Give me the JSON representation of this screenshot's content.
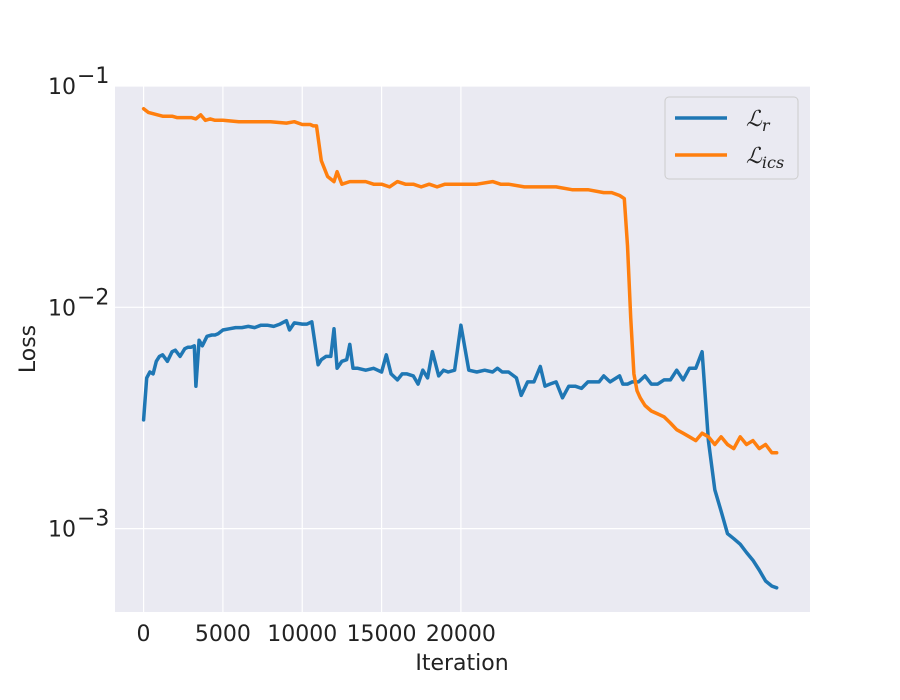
{
  "chart_data": {
    "type": "line",
    "xlabel": "Iteration",
    "ylabel": "Loss",
    "yscale": "log",
    "grid": true,
    "legend_position": "top-right",
    "xlim": [
      -1800,
      42000
    ],
    "ylim": [
      0.00042,
      0.1
    ],
    "x_ticks": [
      0,
      5000,
      10000,
      15000,
      20000
    ],
    "x_tick_labels": [
      "0",
      "5000",
      "10000",
      "15000",
      "20000"
    ],
    "y_ticks": [
      0.001,
      0.01,
      0.1
    ],
    "y_tick_labels": [
      {
        "base": "10",
        "exp": "−3"
      },
      {
        "base": "10",
        "exp": "−2"
      },
      {
        "base": "10",
        "exp": "−1"
      }
    ],
    "series": [
      {
        "name": "ℒr",
        "legend_base": "ℒ",
        "legend_sub": "r",
        "color": "#1f77b4",
        "x": [
          0,
          200,
          400,
          600,
          800,
          1000,
          1200,
          1500,
          1800,
          2000,
          2300,
          2600,
          2800,
          3000,
          3200,
          3300,
          3500,
          3700,
          4000,
          4300,
          4500,
          4700,
          5000,
          5400,
          5800,
          6200,
          6600,
          7000,
          7400,
          7800,
          8200,
          8600,
          9000,
          9200,
          9500,
          10000,
          10300,
          10600,
          11000,
          11200,
          11500,
          11800,
          12000,
          12200,
          12500,
          12800,
          13000,
          13200,
          13500,
          14000,
          14500,
          15000,
          15300,
          15600,
          16000,
          16300,
          16600,
          17000,
          17300,
          17600,
          17900,
          18200,
          18600,
          18900,
          19200,
          19600,
          20000,
          20500,
          21000,
          21500,
          22000,
          22300,
          22600,
          23000,
          23500,
          23800,
          24200,
          24600,
          25000,
          25300,
          25600,
          26000,
          26400,
          26800,
          27200,
          27600,
          28000,
          28300,
          28700,
          29000,
          29400,
          29800,
          30000,
          30200,
          30500,
          30800,
          31200,
          31600,
          32000,
          32400,
          32800,
          33200,
          33600,
          34000,
          34400,
          34800,
          35200,
          35600,
          36000,
          36400,
          36800,
          37200,
          37600,
          38000,
          38400,
          38800,
          39200,
          39600,
          39900
        ],
        "y": [
          0.0031,
          0.0048,
          0.0051,
          0.005,
          0.0057,
          0.006,
          0.0061,
          0.0057,
          0.0063,
          0.0064,
          0.006,
          0.0065,
          0.0066,
          0.0066,
          0.0067,
          0.0044,
          0.0071,
          0.0067,
          0.0074,
          0.0075,
          0.0075,
          0.0076,
          0.0079,
          0.008,
          0.0081,
          0.0081,
          0.0082,
          0.0081,
          0.0083,
          0.0083,
          0.0082,
          0.0084,
          0.0087,
          0.0079,
          0.0085,
          0.0084,
          0.0084,
          0.0086,
          0.0055,
          0.0058,
          0.006,
          0.006,
          0.008,
          0.0053,
          0.0057,
          0.0058,
          0.0068,
          0.0053,
          0.0053,
          0.0052,
          0.0053,
          0.0051,
          0.0061,
          0.005,
          0.0047,
          0.005,
          0.005,
          0.0049,
          0.0045,
          0.0052,
          0.0048,
          0.0063,
          0.0049,
          0.0052,
          0.0051,
          0.0052,
          0.0083,
          0.0052,
          0.0051,
          0.0052,
          0.0051,
          0.0053,
          0.0051,
          0.0051,
          0.0048,
          0.004,
          0.0046,
          0.0046,
          0.0054,
          0.0044,
          0.0045,
          0.0046,
          0.0039,
          0.0044,
          0.0044,
          0.0043,
          0.0046,
          0.0046,
          0.0046,
          0.0049,
          0.0046,
          0.0048,
          0.0049,
          0.0045,
          0.0045,
          0.0046,
          0.0046,
          0.0049,
          0.0045,
          0.0045,
          0.0047,
          0.0047,
          0.0052,
          0.0047,
          0.0053,
          0.0053,
          0.0063,
          0.0025,
          0.0015,
          0.0012,
          0.00095,
          0.0009,
          0.00085,
          0.00078,
          0.00072,
          0.00065,
          0.00058,
          0.00055,
          0.00054
        ]
      },
      {
        "name": "ℒics",
        "legend_base": "ℒ",
        "legend_sub": "ics",
        "color": "#ff7f0e",
        "x": [
          0,
          300,
          600,
          900,
          1200,
          1500,
          1800,
          2100,
          2400,
          2700,
          3000,
          3300,
          3600,
          3900,
          4200,
          4500,
          5000,
          6000,
          7000,
          8000,
          9000,
          9500,
          10000,
          10500,
          10700,
          10900,
          11200,
          11600,
          12000,
          12200,
          12500,
          13000,
          13500,
          14000,
          14500,
          15000,
          15500,
          16000,
          16500,
          17000,
          17500,
          18000,
          18500,
          19000,
          19500,
          20000,
          21000,
          22000,
          22500,
          23000,
          24000,
          25000,
          25500,
          26000,
          27000,
          28000,
          29000,
          29500,
          30000,
          30300,
          30500,
          30700,
          30900,
          31100,
          31300,
          31600,
          32000,
          32400,
          32800,
          33200,
          33600,
          34000,
          34400,
          34800,
          35200,
          35600,
          36000,
          36400,
          36800,
          37200,
          37600,
          38000,
          38400,
          38800,
          39200,
          39600,
          39900
        ],
        "y": [
          0.079,
          0.076,
          0.075,
          0.074,
          0.073,
          0.073,
          0.073,
          0.072,
          0.072,
          0.072,
          0.072,
          0.071,
          0.074,
          0.07,
          0.071,
          0.07,
          0.07,
          0.069,
          0.069,
          0.069,
          0.068,
          0.069,
          0.067,
          0.067,
          0.066,
          0.066,
          0.046,
          0.039,
          0.037,
          0.041,
          0.036,
          0.037,
          0.037,
          0.037,
          0.036,
          0.036,
          0.035,
          0.037,
          0.036,
          0.036,
          0.035,
          0.036,
          0.035,
          0.036,
          0.036,
          0.036,
          0.036,
          0.037,
          0.036,
          0.036,
          0.035,
          0.035,
          0.035,
          0.035,
          0.034,
          0.034,
          0.033,
          0.033,
          0.032,
          0.031,
          0.019,
          0.009,
          0.005,
          0.0042,
          0.0039,
          0.0036,
          0.0034,
          0.0033,
          0.0032,
          0.003,
          0.0028,
          0.0027,
          0.0026,
          0.0025,
          0.0027,
          0.0026,
          0.0024,
          0.0026,
          0.0024,
          0.0023,
          0.0026,
          0.0024,
          0.0025,
          0.0023,
          0.0024,
          0.0022,
          0.0022
        ]
      }
    ]
  }
}
